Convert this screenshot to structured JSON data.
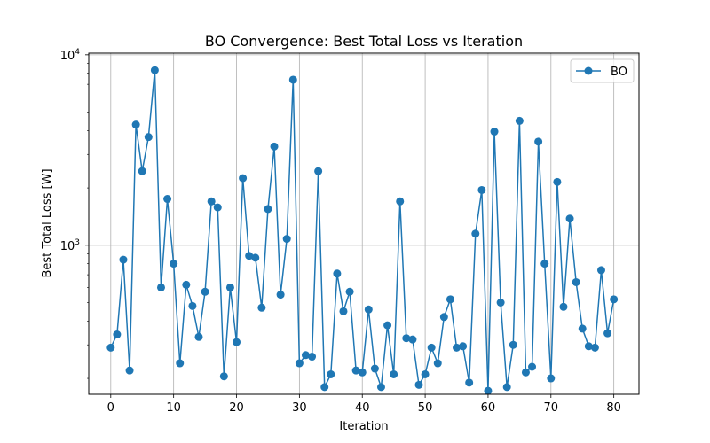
{
  "chart_data": {
    "type": "line",
    "title": "BO Convergence: Best Total Loss vs Iteration",
    "xlabel": "Iteration",
    "ylabel": "Best Total Loss [W]",
    "xlim": [
      -3.5,
      84
    ],
    "ylim": [
      165,
      10200
    ],
    "yscale": "log",
    "grid": true,
    "legend_position": "top-right",
    "x_ticks": [
      0,
      10,
      20,
      30,
      40,
      50,
      60,
      70,
      80
    ],
    "y_ticks": [
      {
        "value": 1000,
        "base": "10",
        "exp": "3"
      },
      {
        "value": 10000,
        "base": "10",
        "exp": "4"
      }
    ],
    "series": [
      {
        "name": "BO",
        "color": "#1f77b4",
        "marker": "circle",
        "x": [
          0,
          1,
          2,
          3,
          4,
          5,
          6,
          7,
          8,
          9,
          10,
          11,
          12,
          13,
          14,
          15,
          16,
          17,
          18,
          19,
          20,
          21,
          22,
          23,
          24,
          25,
          26,
          27,
          28,
          29,
          30,
          31,
          32,
          33,
          34,
          35,
          36,
          37,
          38,
          39,
          40,
          41,
          42,
          43,
          44,
          45,
          46,
          47,
          48,
          49,
          50,
          51,
          52,
          53,
          54,
          55,
          56,
          57,
          58,
          59,
          60,
          61,
          62,
          63,
          64,
          65,
          66,
          67,
          68,
          69,
          70,
          71,
          72,
          73,
          74,
          75,
          76,
          77,
          78,
          79,
          80
        ],
        "values": [
          290,
          340,
          840,
          220,
          4300,
          2450,
          3700,
          8300,
          600,
          1750,
          800,
          240,
          620,
          480,
          330,
          570,
          1700,
          1580,
          205,
          600,
          310,
          2250,
          880,
          860,
          470,
          1550,
          3300,
          550,
          1080,
          7400,
          240,
          265,
          260,
          2450,
          180,
          210,
          710,
          450,
          570,
          220,
          215,
          460,
          225,
          180,
          380,
          210,
          1700,
          325,
          320,
          185,
          210,
          290,
          240,
          420,
          520,
          290,
          295,
          190,
          1150,
          1950,
          172,
          3950,
          500,
          180,
          300,
          4500,
          215,
          230,
          3500,
          800,
          200,
          2150,
          475,
          1380,
          640,
          365,
          295,
          290,
          740,
          345,
          520
        ]
      }
    ]
  }
}
